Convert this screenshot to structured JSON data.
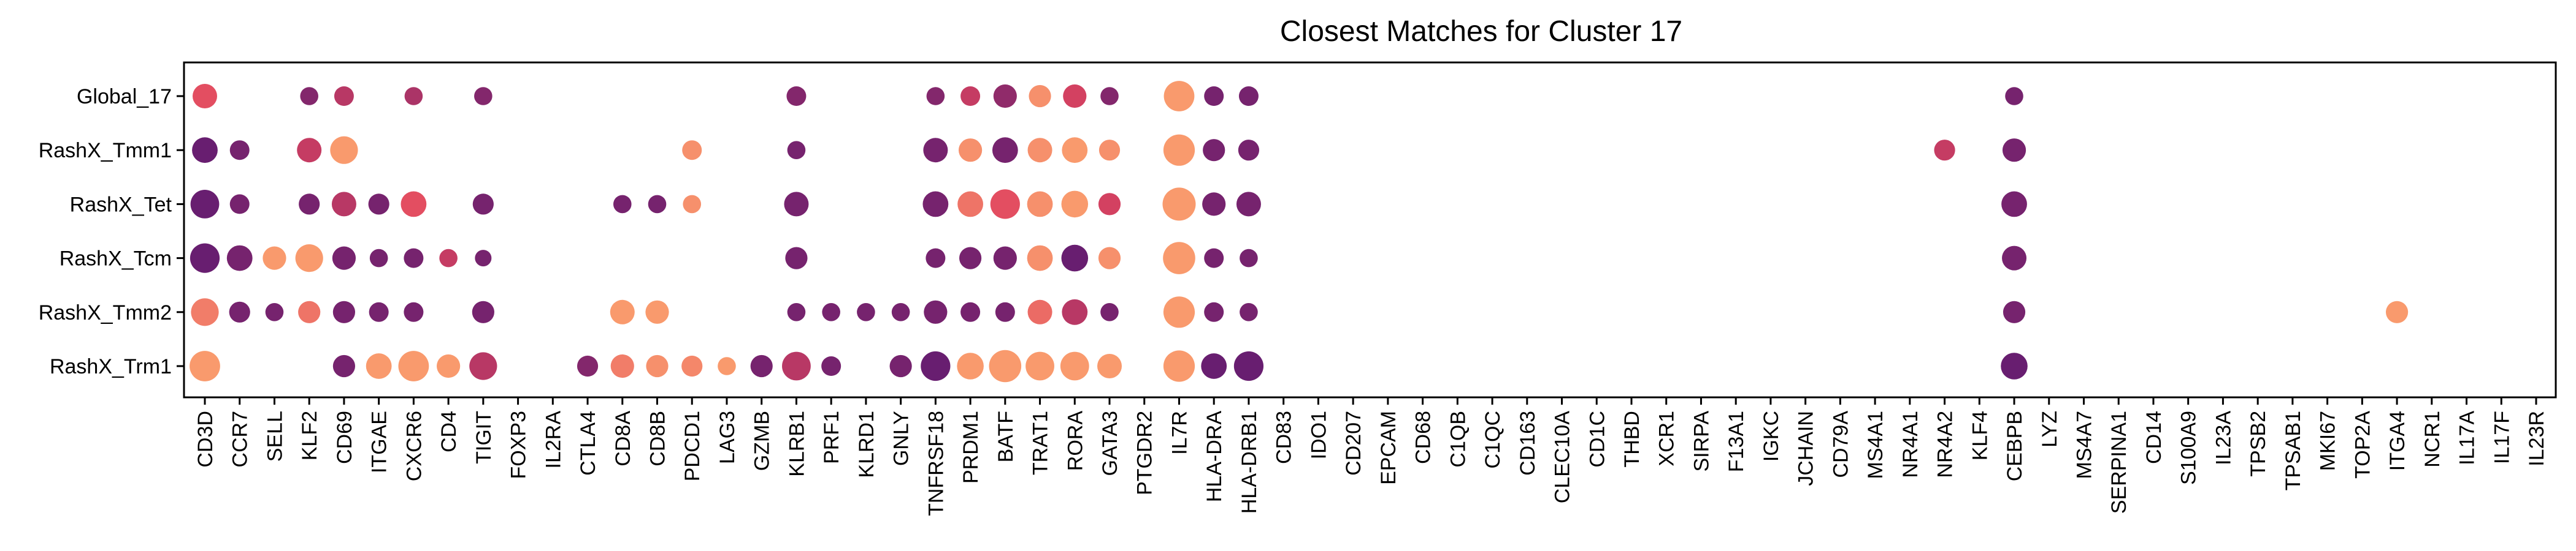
{
  "chart_data": {
    "type": "dotplot",
    "title": "Closest Matches for Cluster 17",
    "xlabel": "",
    "ylabel": "",
    "legend": "none",
    "grid": false,
    "rows": [
      "Global_17",
      "RashX_Tmm1",
      "RashX_Tet",
      "RashX_Tcm",
      "RashX_Tmm2",
      "RashX_Trm1"
    ],
    "genes": [
      "CD3D",
      "CCR7",
      "SELL",
      "KLF2",
      "CD69",
      "ITGAE",
      "CXCR6",
      "CD4",
      "TIGIT",
      "FOXP3",
      "IL2RA",
      "CTLA4",
      "CD8A",
      "CD8B",
      "PDCD1",
      "LAG3",
      "GZMB",
      "KLRB1",
      "PRF1",
      "KLRD1",
      "GNLY",
      "TNFRSF18",
      "PRDM1",
      "BATF",
      "TRAT1",
      "RORA",
      "GATA3",
      "PTGDR2",
      "IL7R",
      "HLA-DRA",
      "HLA-DRB1",
      "CD83",
      "IDO1",
      "CD207",
      "EPCAM",
      "CD68",
      "C1QB",
      "C1QC",
      "CD163",
      "CLEC10A",
      "CD1C",
      "THBD",
      "XCR1",
      "SIRPA",
      "F13A1",
      "IGKC",
      "JCHAIN",
      "CD79A",
      "MS4A1",
      "NR4A1",
      "NR4A2",
      "KLF4",
      "CEBPB",
      "LYZ",
      "MS4A7",
      "SERPINA1",
      "CD14",
      "S100A9",
      "IL23A",
      "TPSB2",
      "TPSAB1",
      "MKI67",
      "TOP2A",
      "ITGA4",
      "NCR1",
      "IL17A",
      "IL17F",
      "IL23R"
    ],
    "size_scale": [
      0,
      1
    ],
    "color_scale": {
      "low": "#5b1a72",
      "mid": "#e0455f",
      "high": "#fca36f"
    },
    "points": [
      {
        "row": "Global_17",
        "gene": "CD3D",
        "size": 0.55,
        "color": 0.55
      },
      {
        "row": "Global_17",
        "gene": "KLF2",
        "size": 0.3,
        "color": 0.15
      },
      {
        "row": "Global_17",
        "gene": "CD69",
        "size": 0.35,
        "color": 0.35
      },
      {
        "row": "Global_17",
        "gene": "CXCR6",
        "size": 0.3,
        "color": 0.3
      },
      {
        "row": "Global_17",
        "gene": "TIGIT",
        "size": 0.3,
        "color": 0.15
      },
      {
        "row": "Global_17",
        "gene": "KLRB1",
        "size": 0.35,
        "color": 0.15
      },
      {
        "row": "Global_17",
        "gene": "TNFRSF18",
        "size": 0.3,
        "color": 0.15
      },
      {
        "row": "Global_17",
        "gene": "PRDM1",
        "size": 0.35,
        "color": 0.4
      },
      {
        "row": "Global_17",
        "gene": "BATF",
        "size": 0.5,
        "color": 0.2
      },
      {
        "row": "Global_17",
        "gene": "TRAT1",
        "size": 0.45,
        "color": 0.9
      },
      {
        "row": "Global_17",
        "gene": "RORA",
        "size": 0.5,
        "color": 0.45
      },
      {
        "row": "Global_17",
        "gene": "GATA3",
        "size": 0.3,
        "color": 0.15
      },
      {
        "row": "Global_17",
        "gene": "IL7R",
        "size": 0.85,
        "color": 0.95
      },
      {
        "row": "Global_17",
        "gene": "HLA-DRA",
        "size": 0.35,
        "color": 0.1
      },
      {
        "row": "Global_17",
        "gene": "HLA-DRB1",
        "size": 0.35,
        "color": 0.1
      },
      {
        "row": "Global_17",
        "gene": "CEBPB",
        "size": 0.3,
        "color": 0.1
      },
      {
        "row": "RashX_Tmm1",
        "gene": "CD3D",
        "size": 0.6,
        "color": 0.05
      },
      {
        "row": "RashX_Tmm1",
        "gene": "CCR7",
        "size": 0.35,
        "color": 0.1
      },
      {
        "row": "RashX_Tmm1",
        "gene": "KLF2",
        "size": 0.55,
        "color": 0.4
      },
      {
        "row": "RashX_Tmm1",
        "gene": "CD69",
        "size": 0.7,
        "color": 0.95
      },
      {
        "row": "RashX_Tmm1",
        "gene": "PDCD1",
        "size": 0.35,
        "color": 0.9
      },
      {
        "row": "RashX_Tmm1",
        "gene": "KLRB1",
        "size": 0.3,
        "color": 0.1
      },
      {
        "row": "RashX_Tmm1",
        "gene": "TNFRSF18",
        "size": 0.55,
        "color": 0.1
      },
      {
        "row": "RashX_Tmm1",
        "gene": "PRDM1",
        "size": 0.5,
        "color": 0.9
      },
      {
        "row": "RashX_Tmm1",
        "gene": "BATF",
        "size": 0.6,
        "color": 0.1
      },
      {
        "row": "RashX_Tmm1",
        "gene": "TRAT1",
        "size": 0.55,
        "color": 0.9
      },
      {
        "row": "RashX_Tmm1",
        "gene": "RORA",
        "size": 0.6,
        "color": 0.95
      },
      {
        "row": "RashX_Tmm1",
        "gene": "GATA3",
        "size": 0.4,
        "color": 0.9
      },
      {
        "row": "RashX_Tmm1",
        "gene": "IL7R",
        "size": 0.9,
        "color": 0.95
      },
      {
        "row": "RashX_Tmm1",
        "gene": "HLA-DRA",
        "size": 0.45,
        "color": 0.1
      },
      {
        "row": "RashX_Tmm1",
        "gene": "HLA-DRB1",
        "size": 0.4,
        "color": 0.1
      },
      {
        "row": "RashX_Tmm1",
        "gene": "NR4A2",
        "size": 0.4,
        "color": 0.4
      },
      {
        "row": "RashX_Tmm1",
        "gene": "CEBPB",
        "size": 0.5,
        "color": 0.1
      },
      {
        "row": "RashX_Tet",
        "gene": "CD3D",
        "size": 0.75,
        "color": 0.05
      },
      {
        "row": "RashX_Tet",
        "gene": "CCR7",
        "size": 0.35,
        "color": 0.1
      },
      {
        "row": "RashX_Tet",
        "gene": "KLF2",
        "size": 0.4,
        "color": 0.1
      },
      {
        "row": "RashX_Tet",
        "gene": "CD69",
        "size": 0.55,
        "color": 0.35
      },
      {
        "row": "RashX_Tet",
        "gene": "ITGAE",
        "size": 0.4,
        "color": 0.1
      },
      {
        "row": "RashX_Tet",
        "gene": "CXCR6",
        "size": 0.6,
        "color": 0.55
      },
      {
        "row": "RashX_Tet",
        "gene": "TIGIT",
        "size": 0.4,
        "color": 0.1
      },
      {
        "row": "RashX_Tet",
        "gene": "CD8A",
        "size": 0.3,
        "color": 0.1
      },
      {
        "row": "RashX_Tet",
        "gene": "CD8B",
        "size": 0.3,
        "color": 0.1
      },
      {
        "row": "RashX_Tet",
        "gene": "PDCD1",
        "size": 0.3,
        "color": 0.9
      },
      {
        "row": "RashX_Tet",
        "gene": "KLRB1",
        "size": 0.55,
        "color": 0.1
      },
      {
        "row": "RashX_Tet",
        "gene": "TNFRSF18",
        "size": 0.6,
        "color": 0.1
      },
      {
        "row": "RashX_Tet",
        "gene": "PRDM1",
        "size": 0.6,
        "color": 0.75
      },
      {
        "row": "RashX_Tet",
        "gene": "BATF",
        "size": 0.8,
        "color": 0.55
      },
      {
        "row": "RashX_Tet",
        "gene": "TRAT1",
        "size": 0.6,
        "color": 0.9
      },
      {
        "row": "RashX_Tet",
        "gene": "RORA",
        "size": 0.65,
        "color": 0.95
      },
      {
        "row": "RashX_Tet",
        "gene": "GATA3",
        "size": 0.45,
        "color": 0.45
      },
      {
        "row": "RashX_Tet",
        "gene": "IL7R",
        "size": 1.0,
        "color": 0.95
      },
      {
        "row": "RashX_Tet",
        "gene": "HLA-DRA",
        "size": 0.5,
        "color": 0.1
      },
      {
        "row": "RashX_Tet",
        "gene": "HLA-DRB1",
        "size": 0.55,
        "color": 0.1
      },
      {
        "row": "RashX_Tet",
        "gene": "CEBPB",
        "size": 0.6,
        "color": 0.1
      },
      {
        "row": "RashX_Tcm",
        "gene": "CD3D",
        "size": 0.8,
        "color": 0.05
      },
      {
        "row": "RashX_Tcm",
        "gene": "CCR7",
        "size": 0.6,
        "color": 0.1
      },
      {
        "row": "RashX_Tcm",
        "gene": "SELL",
        "size": 0.5,
        "color": 0.95
      },
      {
        "row": "RashX_Tcm",
        "gene": "KLF2",
        "size": 0.7,
        "color": 0.95
      },
      {
        "row": "RashX_Tcm",
        "gene": "CD69",
        "size": 0.5,
        "color": 0.1
      },
      {
        "row": "RashX_Tcm",
        "gene": "ITGAE",
        "size": 0.3,
        "color": 0.1
      },
      {
        "row": "RashX_Tcm",
        "gene": "CXCR6",
        "size": 0.35,
        "color": 0.1
      },
      {
        "row": "RashX_Tcm",
        "gene": "CD4",
        "size": 0.3,
        "color": 0.4
      },
      {
        "row": "RashX_Tcm",
        "gene": "TIGIT",
        "size": 0.25,
        "color": 0.1
      },
      {
        "row": "RashX_Tcm",
        "gene": "KLRB1",
        "size": 0.45,
        "color": 0.1
      },
      {
        "row": "RashX_Tcm",
        "gene": "TNFRSF18",
        "size": 0.35,
        "color": 0.1
      },
      {
        "row": "RashX_Tcm",
        "gene": "PRDM1",
        "size": 0.45,
        "color": 0.1
      },
      {
        "row": "RashX_Tcm",
        "gene": "BATF",
        "size": 0.5,
        "color": 0.1
      },
      {
        "row": "RashX_Tcm",
        "gene": "TRAT1",
        "size": 0.6,
        "color": 0.9
      },
      {
        "row": "RashX_Tcm",
        "gene": "RORA",
        "size": 0.65,
        "color": 0.05
      },
      {
        "row": "RashX_Tcm",
        "gene": "GATA3",
        "size": 0.45,
        "color": 0.9
      },
      {
        "row": "RashX_Tcm",
        "gene": "IL7R",
        "size": 0.95,
        "color": 0.95
      },
      {
        "row": "RashX_Tcm",
        "gene": "HLA-DRA",
        "size": 0.35,
        "color": 0.1
      },
      {
        "row": "RashX_Tcm",
        "gene": "HLA-DRB1",
        "size": 0.3,
        "color": 0.1
      },
      {
        "row": "RashX_Tcm",
        "gene": "CEBPB",
        "size": 0.55,
        "color": 0.1
      },
      {
        "row": "RashX_Tmm2",
        "gene": "CD3D",
        "size": 0.7,
        "color": 0.8
      },
      {
        "row": "RashX_Tmm2",
        "gene": "CCR7",
        "size": 0.4,
        "color": 0.1
      },
      {
        "row": "RashX_Tmm2",
        "gene": "SELL",
        "size": 0.3,
        "color": 0.1
      },
      {
        "row": "RashX_Tmm2",
        "gene": "KLF2",
        "size": 0.45,
        "color": 0.75
      },
      {
        "row": "RashX_Tmm2",
        "gene": "CD69",
        "size": 0.45,
        "color": 0.1
      },
      {
        "row": "RashX_Tmm2",
        "gene": "ITGAE",
        "size": 0.35,
        "color": 0.1
      },
      {
        "row": "RashX_Tmm2",
        "gene": "CXCR6",
        "size": 0.35,
        "color": 0.1
      },
      {
        "row": "RashX_Tmm2",
        "gene": "TIGIT",
        "size": 0.45,
        "color": 0.1
      },
      {
        "row": "RashX_Tmm2",
        "gene": "CD8A",
        "size": 0.55,
        "color": 0.95
      },
      {
        "row": "RashX_Tmm2",
        "gene": "CD8B",
        "size": 0.5,
        "color": 0.95
      },
      {
        "row": "RashX_Tmm2",
        "gene": "KLRB1",
        "size": 0.3,
        "color": 0.1
      },
      {
        "row": "RashX_Tmm2",
        "gene": "PRF1",
        "size": 0.3,
        "color": 0.1
      },
      {
        "row": "RashX_Tmm2",
        "gene": "KLRD1",
        "size": 0.3,
        "color": 0.1
      },
      {
        "row": "RashX_Tmm2",
        "gene": "GNLY",
        "size": 0.3,
        "color": 0.1
      },
      {
        "row": "RashX_Tmm2",
        "gene": "TNFRSF18",
        "size": 0.5,
        "color": 0.1
      },
      {
        "row": "RashX_Tmm2",
        "gene": "PRDM1",
        "size": 0.35,
        "color": 0.1
      },
      {
        "row": "RashX_Tmm2",
        "gene": "BATF",
        "size": 0.35,
        "color": 0.1
      },
      {
        "row": "RashX_Tmm2",
        "gene": "TRAT1",
        "size": 0.55,
        "color": 0.7
      },
      {
        "row": "RashX_Tmm2",
        "gene": "RORA",
        "size": 0.6,
        "color": 0.35
      },
      {
        "row": "RashX_Tmm2",
        "gene": "GATA3",
        "size": 0.3,
        "color": 0.1
      },
      {
        "row": "RashX_Tmm2",
        "gene": "IL7R",
        "size": 0.9,
        "color": 0.95
      },
      {
        "row": "RashX_Tmm2",
        "gene": "HLA-DRA",
        "size": 0.35,
        "color": 0.1
      },
      {
        "row": "RashX_Tmm2",
        "gene": "HLA-DRB1",
        "size": 0.3,
        "color": 0.1
      },
      {
        "row": "RashX_Tmm2",
        "gene": "CEBPB",
        "size": 0.45,
        "color": 0.1
      },
      {
        "row": "RashX_Tmm2",
        "gene": "ITGA4",
        "size": 0.45,
        "color": 0.95
      },
      {
        "row": "RashX_Trm1",
        "gene": "CD3D",
        "size": 0.85,
        "color": 0.95
      },
      {
        "row": "RashX_Trm1",
        "gene": "CD69",
        "size": 0.45,
        "color": 0.1
      },
      {
        "row": "RashX_Trm1",
        "gene": "ITGAE",
        "size": 0.6,
        "color": 0.95
      },
      {
        "row": "RashX_Trm1",
        "gene": "CXCR6",
        "size": 0.85,
        "color": 0.95
      },
      {
        "row": "RashX_Trm1",
        "gene": "CD4",
        "size": 0.5,
        "color": 0.95
      },
      {
        "row": "RashX_Trm1",
        "gene": "TIGIT",
        "size": 0.7,
        "color": 0.35
      },
      {
        "row": "RashX_Trm1",
        "gene": "CTLA4",
        "size": 0.4,
        "color": 0.15
      },
      {
        "row": "RashX_Trm1",
        "gene": "CD8A",
        "size": 0.5,
        "color": 0.8
      },
      {
        "row": "RashX_Trm1",
        "gene": "CD8B",
        "size": 0.45,
        "color": 0.9
      },
      {
        "row": "RashX_Trm1",
        "gene": "GZMB",
        "size": 0.45,
        "color": 0.1
      },
      {
        "row": "RashX_Trm1",
        "gene": "PDCD1",
        "size": 0.4,
        "color": 0.85
      },
      {
        "row": "RashX_Trm1",
        "gene": "LAG3",
        "size": 0.3,
        "color": 0.95
      },
      {
        "row": "RashX_Trm1",
        "gene": "KLRB1",
        "size": 0.75,
        "color": 0.35
      },
      {
        "row": "RashX_Trm1",
        "gene": "PRF1",
        "size": 0.35,
        "color": 0.1
      },
      {
        "row": "RashX_Trm1",
        "gene": "GNLY",
        "size": 0.45,
        "color": 0.1
      },
      {
        "row": "RashX_Trm1",
        "gene": "TNFRSF18",
        "size": 0.8,
        "color": 0.05
      },
      {
        "row": "RashX_Trm1",
        "gene": "PRDM1",
        "size": 0.65,
        "color": 0.95
      },
      {
        "row": "RashX_Trm1",
        "gene": "BATF",
        "size": 0.95,
        "color": 0.95
      },
      {
        "row": "RashX_Trm1",
        "gene": "TRAT1",
        "size": 0.75,
        "color": 0.95
      },
      {
        "row": "RashX_Trm1",
        "gene": "RORA",
        "size": 0.75,
        "color": 0.95
      },
      {
        "row": "RashX_Trm1",
        "gene": "GATA3",
        "size": 0.55,
        "color": 0.95
      },
      {
        "row": "RashX_Trm1",
        "gene": "IL7R",
        "size": 0.9,
        "color": 0.95
      },
      {
        "row": "RashX_Trm1",
        "gene": "HLA-DRA",
        "size": 0.6,
        "color": 0.05
      },
      {
        "row": "RashX_Trm1",
        "gene": "HLA-DRB1",
        "size": 0.8,
        "color": 0.05
      },
      {
        "row": "RashX_Trm1",
        "gene": "CEBPB",
        "size": 0.65,
        "color": 0.05
      }
    ]
  }
}
